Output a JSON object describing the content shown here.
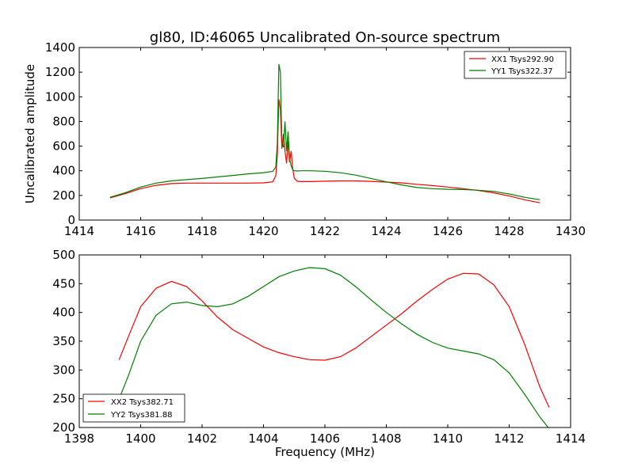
{
  "chart_data": [
    {
      "type": "line",
      "title": "gl80, ID:46065 Uncalibrated On-source spectrum",
      "xlabel": "",
      "ylabel": "Uncalibrated amplitude",
      "xlim": [
        1414,
        1430
      ],
      "ylim": [
        0,
        1400
      ],
      "xticks": [
        1414,
        1416,
        1418,
        1420,
        1422,
        1424,
        1426,
        1428,
        1430
      ],
      "yticks": [
        0,
        200,
        400,
        600,
        800,
        1000,
        1200,
        1400
      ],
      "grid": false,
      "legend_position": "top-right",
      "series": [
        {
          "name": "XX1 Tsys292.90",
          "color": "#ff0000",
          "x": [
            1415.0,
            1415.5,
            1416.0,
            1416.5,
            1417.0,
            1417.5,
            1418.0,
            1418.5,
            1419.0,
            1419.5,
            1420.0,
            1420.3,
            1420.4,
            1420.45,
            1420.5,
            1420.55,
            1420.6,
            1420.65,
            1420.7,
            1420.75,
            1420.8,
            1420.85,
            1420.9,
            1420.95,
            1421.0,
            1421.1,
            1421.2,
            1421.5,
            1422.0,
            1422.5,
            1423.0,
            1423.5,
            1424.0,
            1424.5,
            1425.0,
            1425.5,
            1426.0,
            1426.5,
            1427.0,
            1427.5,
            1428.0,
            1428.5,
            1429.0
          ],
          "y": [
            180,
            215,
            255,
            282,
            296,
            300,
            300,
            300,
            300,
            300,
            302,
            310,
            360,
            520,
            980,
            900,
            580,
            700,
            560,
            460,
            640,
            470,
            560,
            420,
            340,
            315,
            312,
            312,
            315,
            318,
            318,
            314,
            308,
            302,
            290,
            280,
            268,
            255,
            240,
            220,
            195,
            165,
            140
          ]
        },
        {
          "name": "YY1 Tsys322.37",
          "color": "#008000",
          "x": [
            1415.0,
            1415.5,
            1416.0,
            1416.5,
            1417.0,
            1417.5,
            1418.0,
            1418.5,
            1419.0,
            1419.5,
            1420.0,
            1420.3,
            1420.4,
            1420.45,
            1420.5,
            1420.55,
            1420.6,
            1420.65,
            1420.7,
            1420.75,
            1420.8,
            1420.85,
            1420.9,
            1420.95,
            1421.0,
            1421.1,
            1421.2,
            1421.5,
            1422.0,
            1422.5,
            1423.0,
            1423.5,
            1424.0,
            1424.5,
            1425.0,
            1425.5,
            1426.0,
            1426.5,
            1427.0,
            1427.5,
            1428.0,
            1428.5,
            1429.0
          ],
          "y": [
            185,
            222,
            268,
            300,
            318,
            328,
            338,
            350,
            362,
            375,
            385,
            395,
            430,
            620,
            1265,
            1200,
            620,
            590,
            800,
            560,
            720,
            500,
            440,
            410,
            400,
            398,
            400,
            400,
            396,
            384,
            365,
            338,
            310,
            285,
            264,
            255,
            250,
            248,
            242,
            232,
            212,
            185,
            165
          ]
        }
      ]
    },
    {
      "type": "line",
      "title": "",
      "xlabel": "Frequency (MHz)",
      "ylabel": "",
      "xlim": [
        1398,
        1414
      ],
      "ylim": [
        200,
        500
      ],
      "xticks": [
        1398,
        1400,
        1402,
        1404,
        1406,
        1408,
        1410,
        1412,
        1414
      ],
      "yticks": [
        200,
        250,
        300,
        350,
        400,
        450,
        500
      ],
      "grid": false,
      "legend_position": "bottom-left",
      "series": [
        {
          "name": "XX2 Tsys382.71",
          "color": "#ff0000",
          "x": [
            1399.3,
            1399.6,
            1400.0,
            1400.5,
            1401.0,
            1401.5,
            1402.0,
            1402.5,
            1403.0,
            1403.5,
            1404.0,
            1404.5,
            1405.0,
            1405.5,
            1406.0,
            1406.5,
            1407.0,
            1407.5,
            1408.0,
            1408.5,
            1409.0,
            1409.5,
            1410.0,
            1410.5,
            1411.0,
            1411.5,
            1412.0,
            1412.5,
            1413.0,
            1413.3
          ],
          "y": [
            318,
            358,
            410,
            442,
            454,
            445,
            420,
            392,
            370,
            355,
            340,
            330,
            323,
            318,
            317,
            323,
            338,
            358,
            378,
            398,
            420,
            440,
            458,
            468,
            467,
            448,
            410,
            345,
            270,
            235
          ]
        },
        {
          "name": "YY2 Tsys381.88",
          "color": "#008000",
          "x": [
            1399.3,
            1399.6,
            1400.0,
            1400.5,
            1401.0,
            1401.5,
            1402.0,
            1402.5,
            1403.0,
            1403.5,
            1404.0,
            1404.5,
            1405.0,
            1405.5,
            1406.0,
            1406.5,
            1407.0,
            1407.5,
            1408.0,
            1408.5,
            1409.0,
            1409.5,
            1410.0,
            1410.5,
            1411.0,
            1411.5,
            1412.0,
            1412.5,
            1413.0,
            1413.3
          ],
          "y": [
            250,
            290,
            350,
            395,
            415,
            418,
            412,
            410,
            415,
            428,
            445,
            462,
            472,
            478,
            476,
            465,
            445,
            422,
            400,
            380,
            362,
            348,
            338,
            333,
            328,
            318,
            295,
            258,
            218,
            198
          ]
        }
      ]
    }
  ]
}
